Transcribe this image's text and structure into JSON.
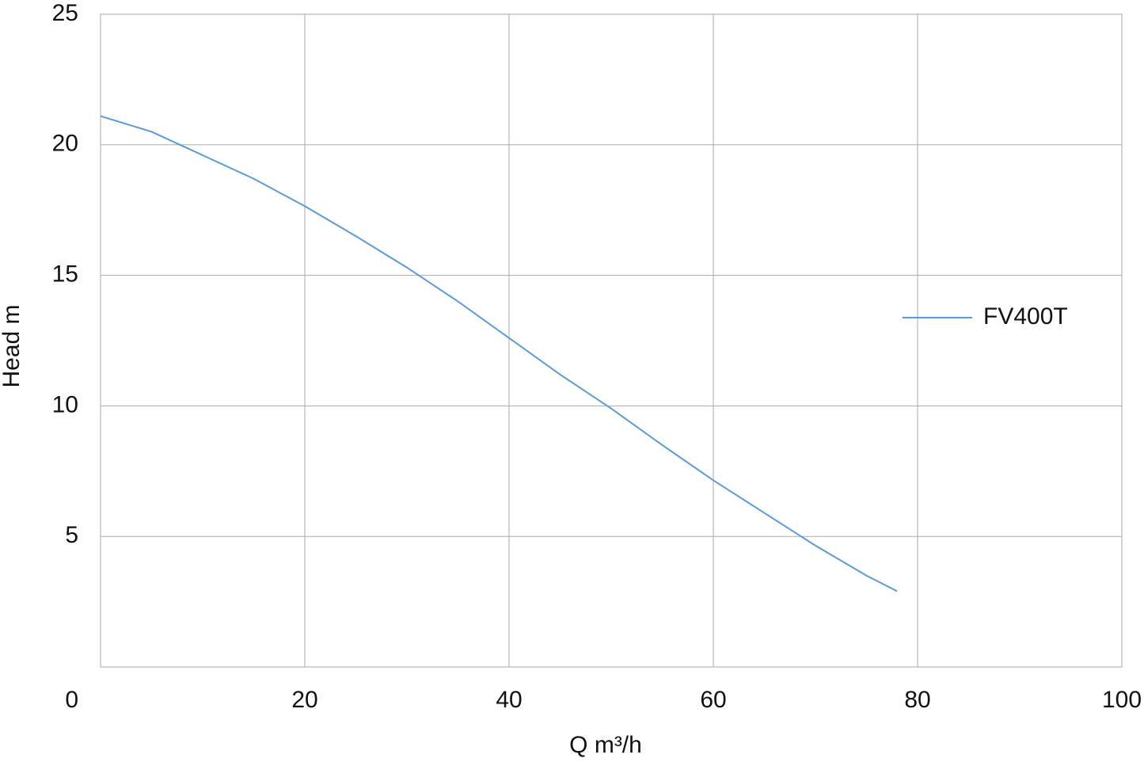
{
  "chart_data": {
    "type": "line",
    "x_label": "Q m³/h",
    "y_label": "Head m",
    "x": [
      0,
      5,
      10,
      15,
      20,
      25,
      30,
      35,
      40,
      45,
      50,
      55,
      60,
      65,
      70,
      75,
      78
    ],
    "series": [
      {
        "name": "FV400T",
        "color": "#5b9bd5",
        "values": [
          21.1,
          20.5,
          19.6,
          18.7,
          17.65,
          16.5,
          15.3,
          14.0,
          12.6,
          11.2,
          9.9,
          8.5,
          7.15,
          5.9,
          4.65,
          3.5,
          2.9
        ]
      }
    ],
    "xlim": [
      0,
      100
    ],
    "xticks": [
      0,
      20,
      40,
      60,
      80,
      100
    ],
    "ylim": [
      0,
      25
    ],
    "yticks": [
      5,
      10,
      15,
      20,
      25
    ],
    "grid": true,
    "legend": "right"
  }
}
